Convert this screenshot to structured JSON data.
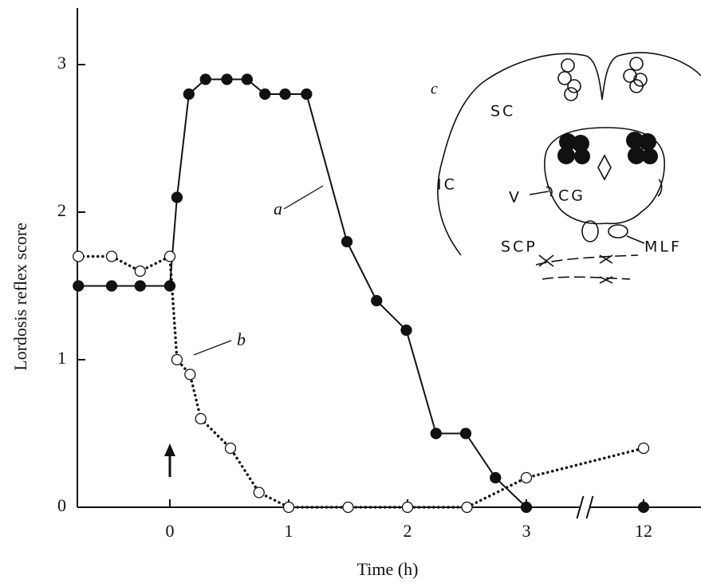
{
  "chart_data": {
    "type": "line",
    "x_label": "Time (h)",
    "y_label": "Lordosis reflex score",
    "xlim": [
      -0.9,
      13.3
    ],
    "ylim": [
      0,
      3.4
    ],
    "xticks": [
      0,
      1,
      2,
      3,
      12
    ],
    "yticks": [
      0,
      1,
      2,
      3
    ],
    "x_break": true,
    "series": [
      {
        "name": "a",
        "color": "#111111",
        "line_style": "solid",
        "marker": "filled",
        "x": [
          -0.77,
          -0.49,
          -0.25,
          0,
          0.06,
          0.16,
          0.3,
          0.48,
          0.65,
          0.8,
          0.97,
          1.15,
          1.49,
          1.74,
          1.99,
          2.24,
          2.49,
          2.74,
          3,
          12
        ],
        "values": [
          1.5,
          1.5,
          1.5,
          1.5,
          2.1,
          2.8,
          2.9,
          2.9,
          2.9,
          2.8,
          2.8,
          2.8,
          1.8,
          1.4,
          1.2,
          0.5,
          0.5,
          0.2,
          0,
          0
        ]
      },
      {
        "name": "b",
        "color": "#111111",
        "line_style": "dotted",
        "marker": "open",
        "x": [
          -0.77,
          -0.49,
          -0.25,
          0,
          0.06,
          0.17,
          0.26,
          0.51,
          0.75,
          1,
          1.5,
          2,
          2.5,
          3,
          12
        ],
        "values": [
          1.7,
          1.7,
          1.6,
          1.7,
          1.0,
          0.9,
          0.6,
          0.4,
          0.1,
          0,
          0,
          0,
          0,
          0.2,
          0.4
        ]
      }
    ],
    "inset_labels": [
      "c",
      "SC",
      "IC",
      "V",
      "CG",
      "SCP",
      "MLF"
    ]
  }
}
